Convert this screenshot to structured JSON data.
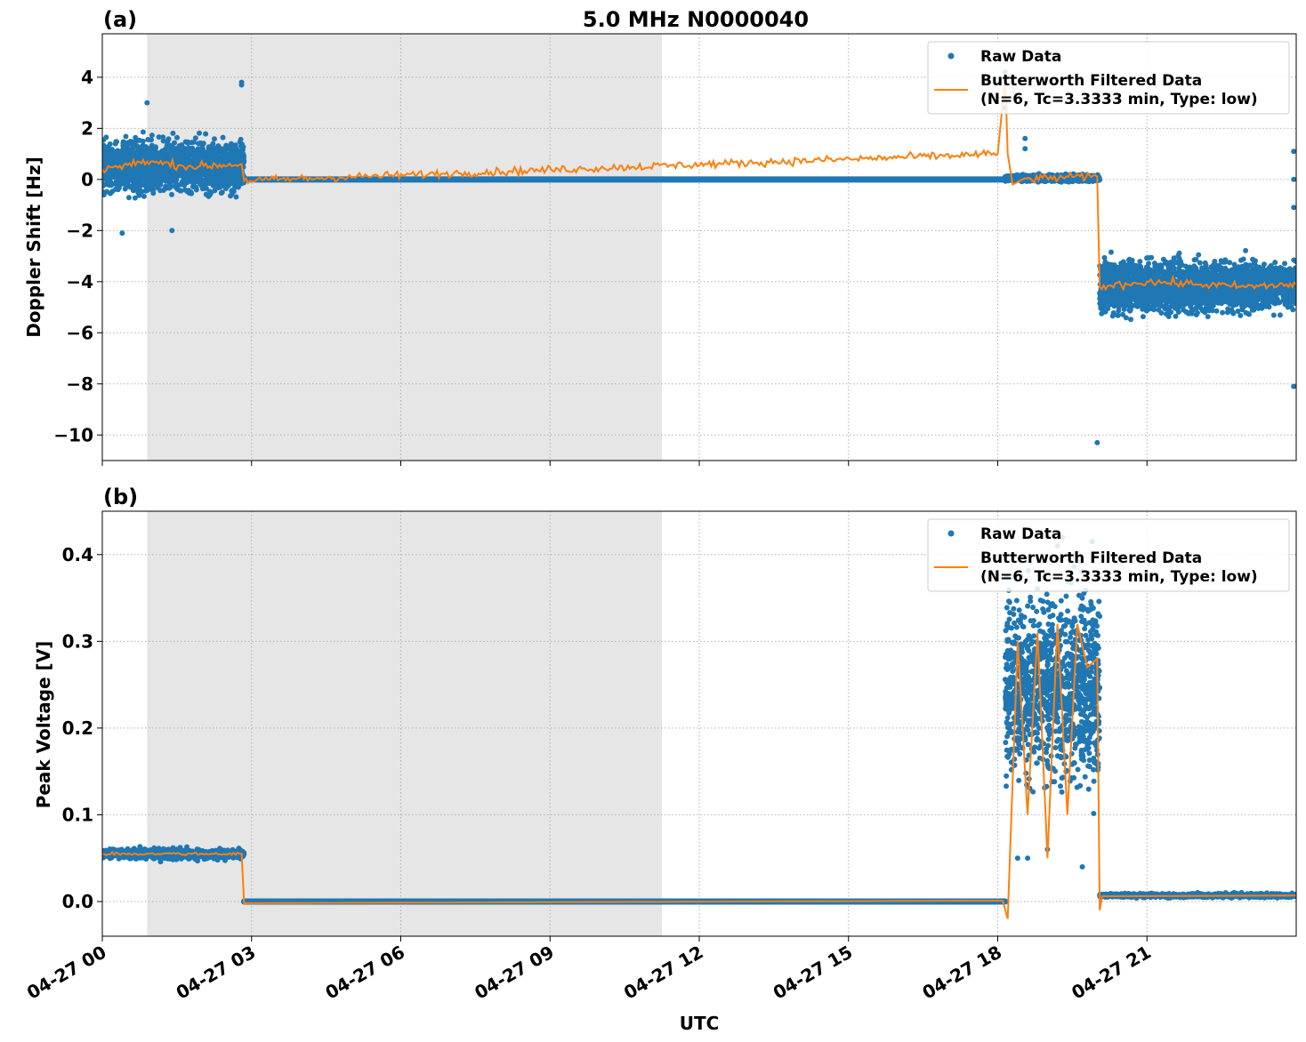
{
  "figure": {
    "title": "5.0 MHz N0000040",
    "xlabel": "UTC",
    "x_ticks": [
      "04-27 00",
      "04-27 03",
      "04-27 06",
      "04-27 09",
      "04-27 12",
      "04-27 15",
      "04-27 18",
      "04-27 21"
    ],
    "legend": {
      "raw": "Raw Data",
      "filt_line1": "Butterworth Filtered Data",
      "filt_line2": "(N=6, Tc=3.3333 min, Type: low)"
    }
  },
  "colors": {
    "raw": "#1f77b4",
    "filtered": "#ff7f0e",
    "shade": "#e6e6e6",
    "grid": "#b0b0b0"
  },
  "chart_data": [
    {
      "type": "scatter",
      "panel_label": "(a)",
      "ylabel": "Doppler Shift [Hz]",
      "x_unit": "hours UTC on 04-27",
      "xlim": [
        0,
        24
      ],
      "ylim": [
        -11,
        5.7
      ],
      "y_ticks": [
        4,
        2,
        0,
        -2,
        -4,
        -6,
        -8,
        -10
      ],
      "y_tick_labels": [
        "4",
        "2",
        "0",
        "−2",
        "−4",
        "−6",
        "−8",
        "−10"
      ],
      "shaded_region_hours": [
        0.9,
        11.25
      ],
      "grid": true,
      "legend_location": "upper right",
      "series": [
        {
          "name": "Raw Data",
          "kind": "scatter",
          "segments": [
            {
              "x_range": [
                0,
                2.85
              ],
              "center": 0.5,
              "spread": 1.6
            },
            {
              "x_range": [
                2.85,
                18.15
              ],
              "center": 0.0,
              "spread": 0.0
            },
            {
              "x_range": [
                18.15,
                20.05
              ],
              "center": 0.05,
              "spread": 0.2
            },
            {
              "x_range": [
                20.05,
                24
              ],
              "center": -4.2,
              "spread": 1.6
            }
          ],
          "outliers": [
            [
              0.9,
              3.0
            ],
            [
              1.4,
              -2.0
            ],
            [
              0.4,
              -2.1
            ],
            [
              2.8,
              3.8
            ],
            [
              2.8,
              3.7
            ],
            [
              18.15,
              4.2
            ],
            [
              18.15,
              2.8
            ],
            [
              18.55,
              1.6
            ],
            [
              18.55,
              1.2
            ],
            [
              20.0,
              -10.3
            ],
            [
              23.95,
              1.1
            ],
            [
              23.95,
              -8.1
            ],
            [
              23.95,
              -1.1
            ],
            [
              23.95,
              0.0
            ]
          ]
        },
        {
          "name": "Butterworth Filtered Data (N=6, Tc=3.3333 min, Type: low)",
          "kind": "line",
          "keypoints": [
            [
              0,
              0.4
            ],
            [
              0.9,
              0.7
            ],
            [
              1.8,
              0.5
            ],
            [
              2.8,
              0.6
            ],
            [
              2.85,
              -0.05
            ],
            [
              18.0,
              1.0
            ],
            [
              18.15,
              4.0
            ],
            [
              18.2,
              1.0
            ],
            [
              18.3,
              -0.2
            ],
            [
              18.5,
              0.0
            ],
            [
              19.5,
              0.1
            ],
            [
              20.0,
              0.1
            ],
            [
              20.05,
              -4.2
            ],
            [
              21.0,
              -4.0
            ],
            [
              22.0,
              -4.1
            ],
            [
              23.0,
              -4.2
            ],
            [
              24.0,
              -4.1
            ]
          ]
        }
      ]
    },
    {
      "type": "scatter",
      "panel_label": "(b)",
      "ylabel": "Peak Voltage [V]",
      "x_unit": "hours UTC on 04-27",
      "xlim": [
        0,
        24
      ],
      "ylim": [
        -0.04,
        0.45
      ],
      "y_ticks": [
        0.0,
        0.1,
        0.2,
        0.3,
        0.4
      ],
      "y_tick_labels": [
        "0.0",
        "0.1",
        "0.2",
        "0.3",
        "0.4"
      ],
      "shaded_region_hours": [
        0.9,
        11.25
      ],
      "grid": true,
      "legend_location": "upper right",
      "series": [
        {
          "name": "Raw Data",
          "kind": "scatter",
          "segments": [
            {
              "x_range": [
                0,
                2.85
              ],
              "center": 0.055,
              "spread": 0.01
            },
            {
              "x_range": [
                2.85,
                18.15
              ],
              "center": 0.0,
              "spread": 0.0
            },
            {
              "x_range": [
                18.15,
                20.05
              ],
              "center": 0.25,
              "spread": 0.17
            },
            {
              "x_range": [
                20.05,
                24
              ],
              "center": 0.007,
              "spread": 0.004
            }
          ],
          "outliers": [
            [
              19.0,
              0.42
            ],
            [
              19.2,
              0.41
            ],
            [
              19.3,
              0.42
            ],
            [
              19.9,
              0.415
            ],
            [
              18.4,
              0.05
            ],
            [
              18.6,
              0.05
            ],
            [
              19.0,
              0.06
            ],
            [
              19.7,
              0.04
            ]
          ]
        },
        {
          "name": "Butterworth Filtered Data (N=6, Tc=3.3333 min, Type: low)",
          "kind": "line",
          "keypoints": [
            [
              0,
              0.055
            ],
            [
              2.8,
              0.055
            ],
            [
              2.85,
              -0.002
            ],
            [
              18.1,
              0.001
            ],
            [
              18.2,
              -0.02
            ],
            [
              18.3,
              0.14
            ],
            [
              18.4,
              0.3
            ],
            [
              18.6,
              0.1
            ],
            [
              18.8,
              0.31
            ],
            [
              19.0,
              0.05
            ],
            [
              19.2,
              0.32
            ],
            [
              19.4,
              0.1
            ],
            [
              19.6,
              0.32
            ],
            [
              19.8,
              0.27
            ],
            [
              20.0,
              0.28
            ],
            [
              20.05,
              -0.01
            ],
            [
              20.1,
              0.006
            ],
            [
              24.0,
              0.007
            ]
          ]
        }
      ]
    }
  ]
}
